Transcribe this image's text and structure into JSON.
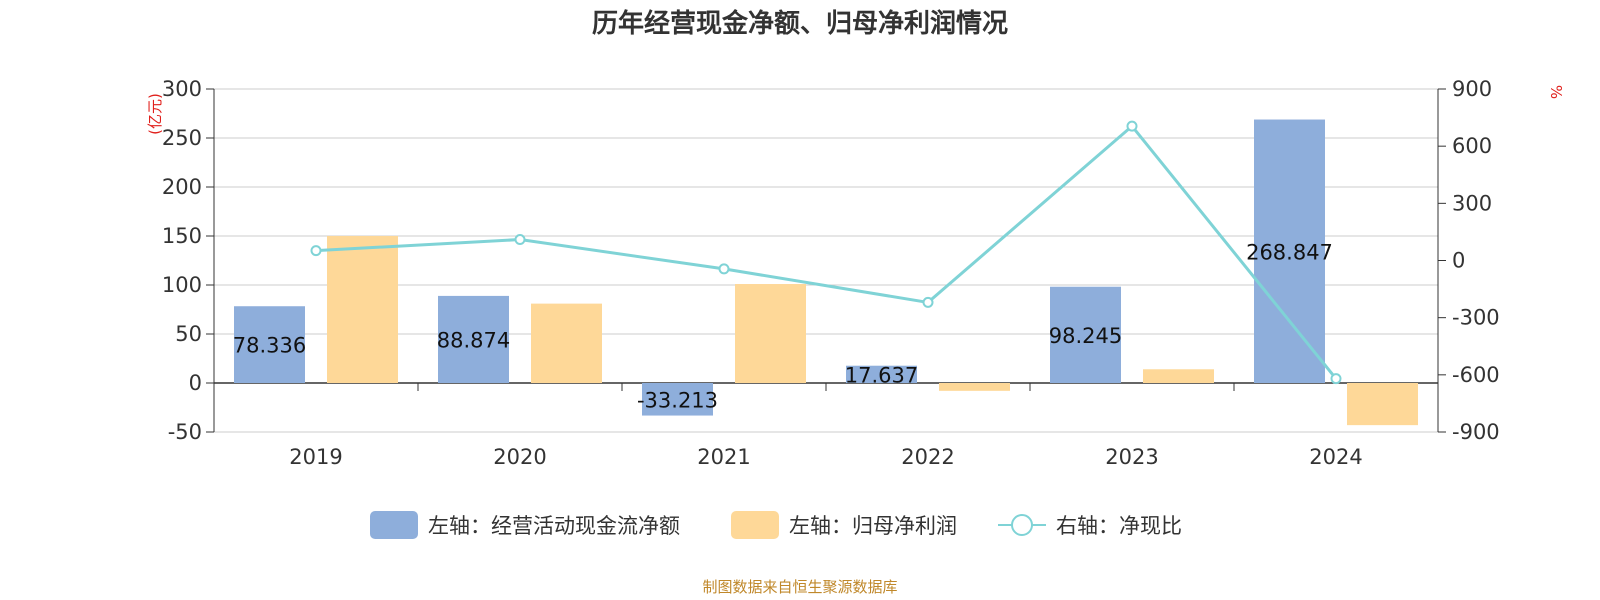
{
  "chart_data": {
    "type": "bar",
    "title": "历年经营现金净额、归母净利润情况",
    "categories": [
      "2019",
      "2020",
      "2021",
      "2022",
      "2023",
      "2024"
    ],
    "left_axis": {
      "unit_label": "(亿元)",
      "ylim": [
        -50,
        300
      ],
      "ticks": [
        300,
        250,
        200,
        150,
        100,
        50,
        0,
        -50
      ]
    },
    "right_axis": {
      "unit_label": "%",
      "ylim": [
        -900,
        900
      ],
      "ticks": [
        900,
        600,
        300,
        0,
        -300,
        -600,
        -900
      ]
    },
    "series": [
      {
        "name": "左轴：经营活动现金流净额",
        "type": "bar",
        "axis": "left",
        "color": "#8eaedb",
        "values": [
          78.336,
          88.874,
          -33.213,
          17.637,
          98.245,
          268.847
        ],
        "labels": [
          "78.336",
          "88.874",
          "-33.213",
          "17.637",
          "98.245",
          "268.847"
        ]
      },
      {
        "name": "左轴：归母净利润",
        "type": "bar",
        "axis": "left",
        "color": "#fed898",
        "values": [
          150,
          81,
          101,
          -8,
          14,
          -43
        ]
      },
      {
        "name": "右轴：净现比",
        "type": "line",
        "axis": "right",
        "color": "#7fd3d6",
        "values": [
          52,
          110,
          -44,
          -220,
          705,
          -620
        ]
      }
    ],
    "grid": true,
    "legend_position": "bottom-center",
    "source": "制图数据来自恒生聚源数据库"
  }
}
